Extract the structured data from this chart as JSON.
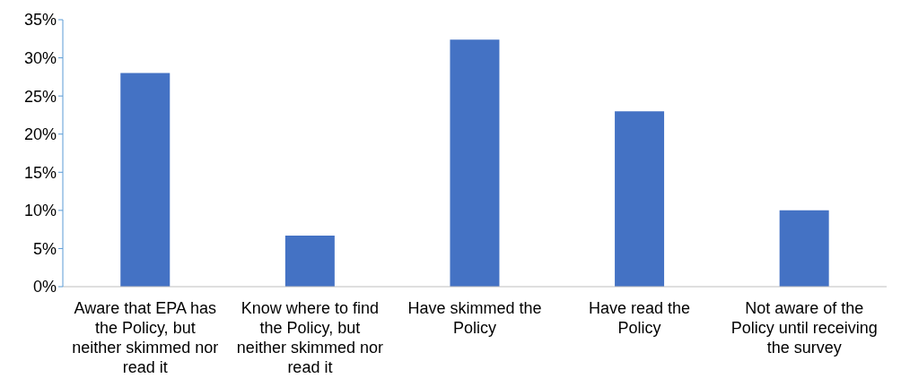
{
  "chart_data": {
    "type": "bar",
    "categories": [
      "Aware that EPA has the Policy, but neither skimmed nor read it",
      "Know where to find the Policy, but neither skimmed nor read it",
      "Have skimmed the Policy",
      "Have read the Policy",
      "Not aware of the Policy until receiving the survey"
    ],
    "values": [
      28.0,
      6.7,
      32.4,
      23.0,
      10.0
    ],
    "color": "#4472c4",
    "ylim": [
      0,
      35
    ],
    "yticks": [
      {
        "value": 0,
        "label": "0%"
      },
      {
        "value": 5,
        "label": "5%"
      },
      {
        "value": 10,
        "label": "10%"
      },
      {
        "value": 15,
        "label": "15%"
      },
      {
        "value": 20,
        "label": "20%"
      },
      {
        "value": 25,
        "label": "25%"
      },
      {
        "value": 30,
        "label": "30%"
      },
      {
        "value": 35,
        "label": "35%"
      }
    ],
    "grid": false,
    "legend": false
  }
}
